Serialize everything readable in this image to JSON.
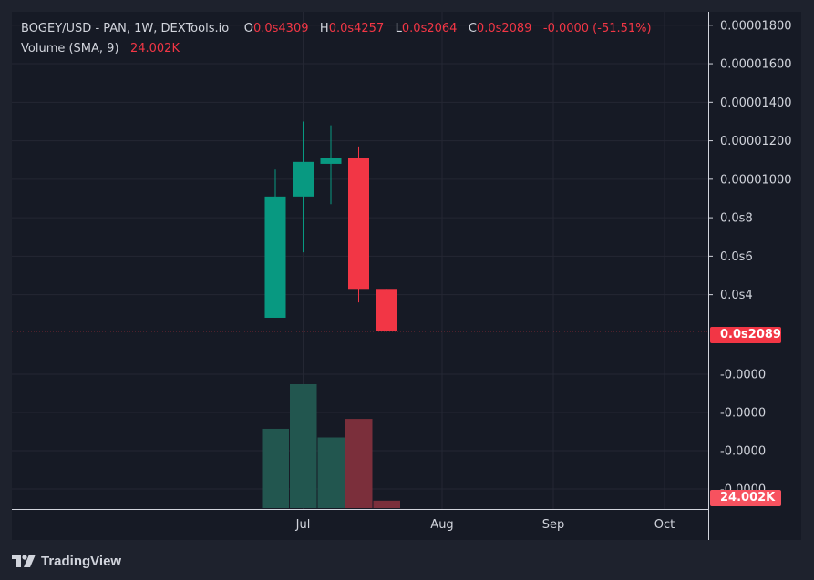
{
  "legend": {
    "title": "BOGEY/USD - PAN, 1W, DEXTools.io",
    "open_label": "O",
    "open_value": "0.0s4309",
    "high_label": "H",
    "high_value": "0.0s4257",
    "low_label": "L",
    "low_value": "0.0s2064",
    "close_label": "C",
    "close_value": "0.0s2089",
    "change": "-0.0000 (-51.51%)",
    "volume_label": "Volume (SMA, 9)",
    "volume_value": "24.002K"
  },
  "price_tag": "0.0s2089",
  "volume_tag": "24.002K",
  "footer": {
    "brand": "TradingView"
  },
  "colors": {
    "up": "#089981",
    "down": "#f23645",
    "vol_up": "#22564f",
    "vol_down": "#7b2f3b",
    "grid": "#242733",
    "text": "#d1d4dc"
  },
  "chart_data": {
    "type": "candlestick",
    "price_axis": {
      "ticks": [
        {
          "value": 1.8e-05,
          "label": "0.00001800"
        },
        {
          "value": 1.6e-05,
          "label": "0.00001600"
        },
        {
          "value": 1.4e-05,
          "label": "0.00001400"
        },
        {
          "value": 1.2e-05,
          "label": "0.00001200"
        },
        {
          "value": 1e-05,
          "label": "0.00001000"
        },
        {
          "value": 8e-06,
          "label": "0.0s8"
        },
        {
          "value": 6e-06,
          "label": "0.0s6"
        },
        {
          "value": 4e-06,
          "label": "0.0s4"
        }
      ],
      "range": [
        1.9e-06,
        1.87e-05
      ]
    },
    "volume_axis": {
      "tick_labels": [
        "-0.0000",
        "-0.0000",
        "-0.0000",
        "-0.0000"
      ]
    },
    "time_axis": {
      "labels": [
        {
          "label": "Jul",
          "week": 1
        },
        {
          "label": "Aug",
          "week": 6
        },
        {
          "label": "Sep",
          "week": 10
        },
        {
          "label": "Oct",
          "week": 14
        }
      ]
    },
    "candles": [
      {
        "week": 0,
        "open": 2.8e-06,
        "high": 1.05e-05,
        "low": 2.8e-06,
        "close": 9.1e-06
      },
      {
        "week": 1,
        "open": 9.1e-06,
        "high": 1.3e-05,
        "low": 6.2e-06,
        "close": 1.09e-05
      },
      {
        "week": 2,
        "open": 1.08e-05,
        "high": 1.28e-05,
        "low": 8.7e-06,
        "close": 1.11e-05
      },
      {
        "week": 3,
        "open": 1.11e-05,
        "high": 1.17e-05,
        "low": 3.6e-06,
        "close": 4.3e-06
      },
      {
        "week": 4,
        "open": 4.3e-06,
        "high": 4.3e-06,
        "low": 2.1e-06,
        "close": 2.1e-06
      }
    ],
    "volume": {
      "max": 1.0,
      "bars": [
        {
          "week": 0,
          "value": 0.64,
          "dir": "up"
        },
        {
          "week": 1,
          "value": 1.0,
          "dir": "up"
        },
        {
          "week": 2,
          "value": 0.57,
          "dir": "up"
        },
        {
          "week": 3,
          "value": 0.72,
          "dir": "down"
        },
        {
          "week": 4,
          "value": 0.06,
          "dir": "down"
        }
      ]
    }
  }
}
